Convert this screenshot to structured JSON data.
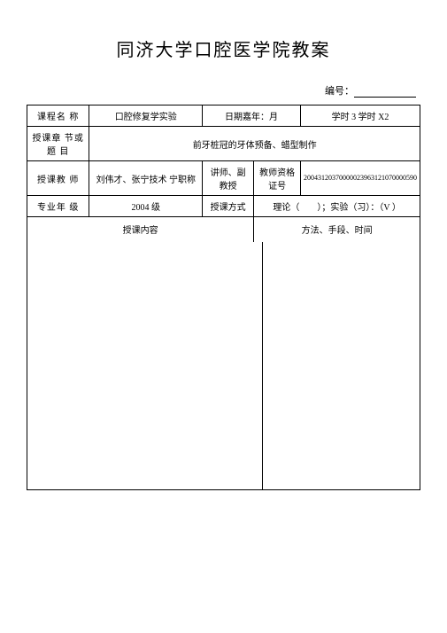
{
  "title": "同济大学口腔医学院教案",
  "docNumberLabel": "编号：",
  "row1": {
    "courseLabel": "课程名 称",
    "courseName": "口腔修复学实验",
    "dateLabel": "日期嘉年：月",
    "hoursText": "学时 3 学时 X2"
  },
  "row2": {
    "chapterLabel": "授课章 节或题 目",
    "chapterContent": "前牙桩冠的牙体预备、蜡型制作"
  },
  "row3": {
    "teacherLabel": "授课教 师",
    "teacherName": "刘伟才、张宁技术 宁职称",
    "titleValue": "讲师、副 教授",
    "certLabel": "教师资格证号",
    "certNumbers": "20043120370000023963121070000590"
  },
  "row4": {
    "gradeLabel": "专业年 级",
    "gradeValue": "2004 级",
    "methodLabel": "授课方式",
    "methodValue": "理论（　　）；实验（习）：（V ）"
  },
  "row5": {
    "contentLabel": "授课内容",
    "methodsLabel": "方法、手段、时间"
  }
}
